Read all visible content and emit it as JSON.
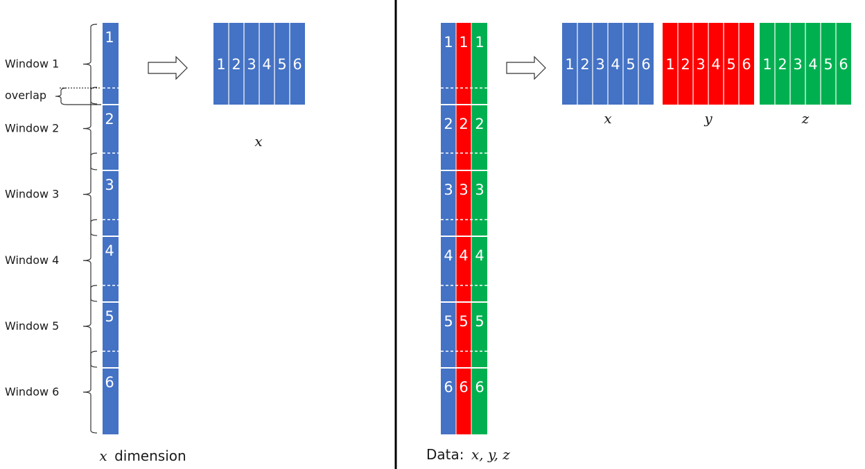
{
  "colors": {
    "x": "#4472c4",
    "y": "#ff0000",
    "z": "#00b050",
    "divider": "#000000",
    "grid": "#ffffff"
  },
  "left": {
    "window_labels": [
      "Window 1",
      "Window 2",
      "Window 3",
      "Window 4",
      "Window 5",
      "Window 6"
    ],
    "overlap_label": "overlap",
    "segment_numbers": [
      "1",
      "2",
      "3",
      "4",
      "5",
      "6"
    ],
    "block_numbers": [
      "1",
      "2",
      "3",
      "4",
      "5",
      "6"
    ],
    "block_label": "x",
    "caption_var": "x",
    "caption_text": "dimension",
    "arrow_icon": "right-arrow-icon"
  },
  "right": {
    "caption_text": "Data:",
    "caption_vars": "x, y, z",
    "segment_numbers": [
      "1",
      "2",
      "3",
      "4",
      "5",
      "6"
    ],
    "blocks": [
      {
        "label": "x",
        "numbers": [
          "1",
          "2",
          "3",
          "4",
          "5",
          "6"
        ]
      },
      {
        "label": "y",
        "numbers": [
          "1",
          "2",
          "3",
          "4",
          "5",
          "6"
        ]
      },
      {
        "label": "z",
        "numbers": [
          "1",
          "2",
          "3",
          "4",
          "5",
          "6"
        ]
      }
    ],
    "arrow_icon": "right-arrow-icon"
  }
}
